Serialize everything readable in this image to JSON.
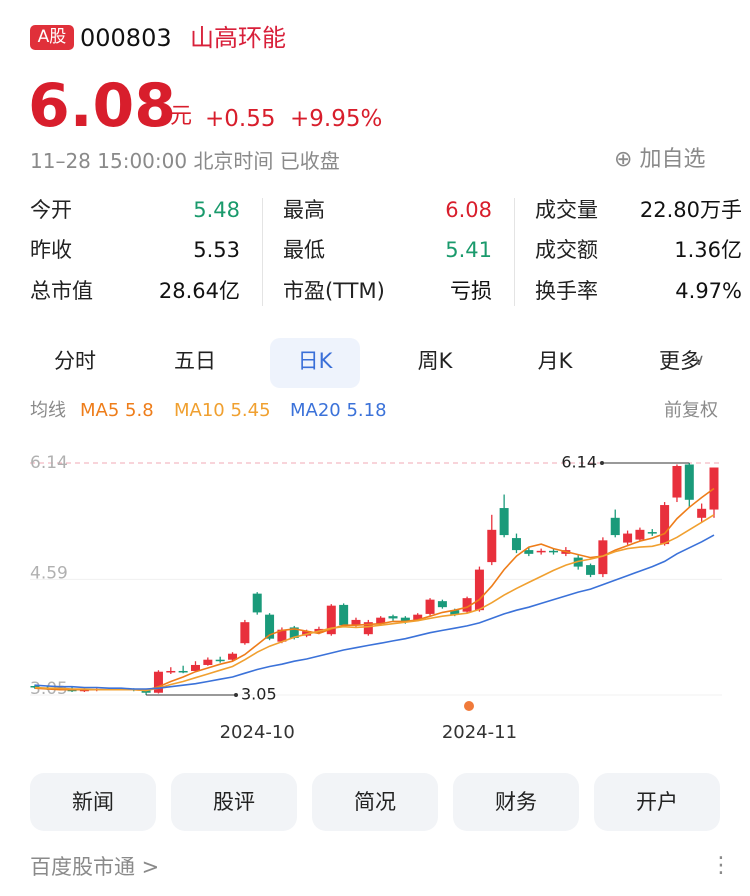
{
  "header": {
    "badge": "A股",
    "code": "000803",
    "name": "山高环能"
  },
  "quote": {
    "price": "6.08",
    "unit": "元",
    "change": "+0.55",
    "percent": "+9.95%",
    "time": "11–28 15:00:00 北京时间 已收盘",
    "add": "加自选"
  },
  "stats": [
    [
      {
        "label": "今开",
        "value": "5.48",
        "color": "#1a9a6c"
      },
      {
        "label": "最高",
        "value": "6.08",
        "color": "#d81e2c"
      },
      {
        "label": "成交量",
        "value": "22.80万手",
        "color": "#111"
      }
    ],
    [
      {
        "label": "昨收",
        "value": "5.53",
        "color": "#111"
      },
      {
        "label": "最低",
        "value": "5.41",
        "color": "#1a9a6c"
      },
      {
        "label": "成交额",
        "value": "1.36亿",
        "color": "#111"
      }
    ],
    [
      {
        "label": "总市值",
        "value": "28.64亿",
        "color": "#111"
      },
      {
        "label": "市盈(TTM)",
        "value": "亏损",
        "color": "#111"
      },
      {
        "label": "换手率",
        "value": "4.97%",
        "color": "#111"
      }
    ]
  ],
  "tabs": [
    "分时",
    "五日",
    "日K",
    "周K",
    "月K",
    "更多"
  ],
  "active_tab": 2,
  "ma_legend": {
    "title": "均线",
    "items": [
      {
        "label": "MA5 5.8",
        "color": "#ee7d1a"
      },
      {
        "label": "MA10 5.45",
        "color": "#f0a030"
      },
      {
        "label": "MA20 5.18",
        "color": "#3b72d9"
      }
    ],
    "adjust": "前复权"
  },
  "chart_data": {
    "type": "candlestick",
    "categories": [
      null,
      null,
      null,
      null,
      null,
      null,
      null,
      null,
      null,
      null,
      null,
      null,
      null,
      null,
      null,
      null,
      null,
      null,
      "2024-10",
      null,
      null,
      null,
      null,
      null,
      null,
      null,
      null,
      null,
      null,
      null,
      null,
      null,
      null,
      null,
      null,
      null,
      "2024-11",
      null,
      null,
      null,
      null,
      null,
      null,
      null,
      null,
      null,
      null,
      null,
      null,
      null,
      null,
      null,
      null,
      null,
      null,
      null
    ],
    "open": [
      3.17,
      3.15,
      3.14,
      3.13,
      3.1,
      3.12,
      3.13,
      3.12,
      3.13,
      3.11,
      3.08,
      3.36,
      3.37,
      3.37,
      3.45,
      3.52,
      3.52,
      3.74,
      4.4,
      4.12,
      3.76,
      3.95,
      3.84,
      3.88,
      3.86,
      4.25,
      3.98,
      3.86,
      4.0,
      4.1,
      4.08,
      4.05,
      4.13,
      4.3,
      4.18,
      4.16,
      4.18,
      4.82,
      5.54,
      5.14,
      4.98,
      4.95,
      4.97,
      4.93,
      4.88,
      4.78,
      4.66,
      5.41,
      5.08,
      5.12,
      5.22,
      5.06,
      5.68,
      6.12,
      5.41,
      5.52
    ],
    "high": [
      3.19,
      3.17,
      3.16,
      3.15,
      3.14,
      3.14,
      3.14,
      3.15,
      3.14,
      3.13,
      3.38,
      3.42,
      3.44,
      3.5,
      3.55,
      3.56,
      3.62,
      4.05,
      4.42,
      4.14,
      3.95,
      3.97,
      3.92,
      3.96,
      4.26,
      4.27,
      4.08,
      4.05,
      4.1,
      4.12,
      4.1,
      4.14,
      4.34,
      4.32,
      4.2,
      4.36,
      4.76,
      5.45,
      5.72,
      5.2,
      5.02,
      5.0,
      5.0,
      5.02,
      4.92,
      4.8,
      5.15,
      5.52,
      5.24,
      5.28,
      5.26,
      5.62,
      6.12,
      6.14,
      5.6,
      6.08
    ],
    "low": [
      3.13,
      3.12,
      3.11,
      3.09,
      3.09,
      3.1,
      3.11,
      3.11,
      3.1,
      3.05,
      3.07,
      3.33,
      3.34,
      3.36,
      3.44,
      3.48,
      3.5,
      3.72,
      4.12,
      3.78,
      3.74,
      3.79,
      3.82,
      3.86,
      3.84,
      3.96,
      3.96,
      3.84,
      3.98,
      4.04,
      4.0,
      4.03,
      4.11,
      4.2,
      4.1,
      4.14,
      4.16,
      4.78,
      5.15,
      4.94,
      4.9,
      4.92,
      4.92,
      4.9,
      4.72,
      4.62,
      4.62,
      5.15,
      5.05,
      5.1,
      5.17,
      5.04,
      5.62,
      5.55,
      5.35,
      5.41
    ],
    "close": [
      3.15,
      3.14,
      3.13,
      3.1,
      3.12,
      3.13,
      3.12,
      3.13,
      3.11,
      3.08,
      3.36,
      3.37,
      3.36,
      3.45,
      3.52,
      3.5,
      3.6,
      4.02,
      4.15,
      3.8,
      3.92,
      3.81,
      3.9,
      3.93,
      4.24,
      3.98,
      4.05,
      4.02,
      4.08,
      4.07,
      4.02,
      4.12,
      4.32,
      4.22,
      4.12,
      4.34,
      4.72,
      5.25,
      5.18,
      4.98,
      4.93,
      4.97,
      4.95,
      4.98,
      4.76,
      4.65,
      5.11,
      5.18,
      5.2,
      5.25,
      5.2,
      5.58,
      6.1,
      5.65,
      5.53,
      6.08
    ],
    "up_color": "#e8303c",
    "down_color": "#1a9a7a",
    "series": [
      {
        "name": "MA5",
        "color": "#ee7d1a",
        "values": [
          3.14,
          3.13,
          3.12,
          3.12,
          3.12,
          3.12,
          3.12,
          3.12,
          3.12,
          3.11,
          3.16,
          3.23,
          3.29,
          3.36,
          3.41,
          3.46,
          3.5,
          3.59,
          3.72,
          3.85,
          3.91,
          3.93,
          3.9,
          3.87,
          3.93,
          3.98,
          3.98,
          3.99,
          4.0,
          4.03,
          4.03,
          4.05,
          4.1,
          4.15,
          4.18,
          4.22,
          4.32,
          4.5,
          4.72,
          4.9,
          5.02,
          5.06,
          5.0,
          4.96,
          4.92,
          4.88,
          4.9,
          4.98,
          5.04,
          5.1,
          5.14,
          5.2,
          5.4,
          5.55,
          5.68,
          5.8
        ]
      },
      {
        "name": "MA10",
        "color": "#f0a030",
        "values": [
          3.15,
          3.14,
          3.14,
          3.13,
          3.13,
          3.12,
          3.12,
          3.12,
          3.12,
          3.11,
          3.14,
          3.19,
          3.23,
          3.28,
          3.33,
          3.38,
          3.43,
          3.52,
          3.62,
          3.7,
          3.76,
          3.82,
          3.86,
          3.9,
          3.94,
          3.96,
          3.95,
          3.96,
          3.98,
          4.0,
          4.02,
          4.04,
          4.07,
          4.1,
          4.12,
          4.14,
          4.19,
          4.28,
          4.38,
          4.47,
          4.55,
          4.63,
          4.71,
          4.78,
          4.83,
          4.86,
          4.9,
          4.96,
          5.0,
          5.02,
          5.03,
          5.07,
          5.15,
          5.25,
          5.35,
          5.45
        ]
      },
      {
        "name": "MA20",
        "color": "#3b72d9",
        "values": [
          3.18,
          3.17,
          3.16,
          3.16,
          3.15,
          3.15,
          3.14,
          3.14,
          3.13,
          3.13,
          3.14,
          3.16,
          3.18,
          3.2,
          3.23,
          3.26,
          3.29,
          3.34,
          3.39,
          3.43,
          3.46,
          3.5,
          3.53,
          3.57,
          3.61,
          3.65,
          3.68,
          3.71,
          3.74,
          3.77,
          3.8,
          3.84,
          3.88,
          3.91,
          3.94,
          3.97,
          4.01,
          4.07,
          4.13,
          4.18,
          4.22,
          4.27,
          4.32,
          4.37,
          4.42,
          4.46,
          4.52,
          4.58,
          4.64,
          4.7,
          4.76,
          4.83,
          4.93,
          5.01,
          5.09,
          5.18
        ]
      }
    ],
    "ylim": [
      3.05,
      6.14
    ],
    "yticks": [
      6.14,
      4.59,
      3.05
    ],
    "max_index": 53,
    "min_index": 9
  },
  "buttons": [
    "新闻",
    "股评",
    "简况",
    "财务",
    "开户"
  ],
  "footer": {
    "brand": "百度股市通 >",
    "menu": "⋮"
  }
}
